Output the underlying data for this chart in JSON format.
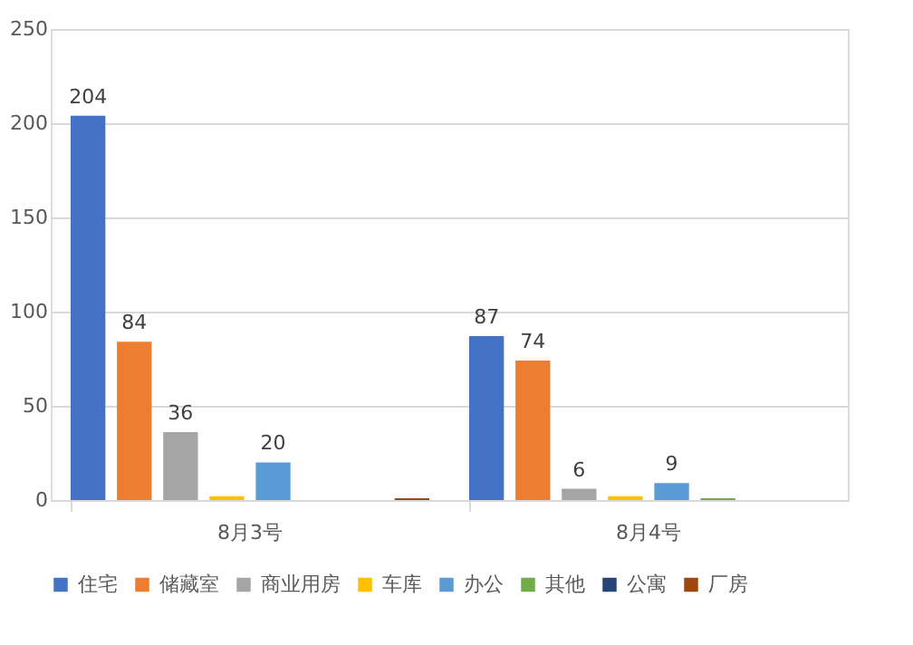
{
  "chart_data": {
    "type": "bar",
    "categories": [
      "8月3号",
      "8月4号"
    ],
    "series": [
      {
        "name": "住宅",
        "color": "#4472c4",
        "values": [
          204,
          87
        ],
        "value_labels": [
          "204",
          "87"
        ]
      },
      {
        "name": "储藏室",
        "color": "#ed7d31",
        "values": [
          84,
          74
        ],
        "value_labels": [
          "84",
          "74"
        ]
      },
      {
        "name": "商业用房",
        "color": "#a5a5a5",
        "values": [
          36,
          6
        ],
        "value_labels": [
          "36",
          "6"
        ]
      },
      {
        "name": "车库",
        "color": "#ffc000",
        "values": [
          2,
          2
        ],
        "value_labels": [
          null,
          null
        ]
      },
      {
        "name": "办公",
        "color": "#5b9bd5",
        "values": [
          20,
          9
        ],
        "value_labels": [
          "20",
          "9"
        ]
      },
      {
        "name": "其他",
        "color": "#70ad47",
        "values": [
          0,
          1
        ],
        "value_labels": [
          null,
          null
        ]
      },
      {
        "name": "公寓",
        "color": "#264478",
        "values": [
          0,
          0
        ],
        "value_labels": [
          null,
          null
        ]
      },
      {
        "name": "厂房",
        "color": "#9e480e",
        "values": [
          1,
          0
        ],
        "value_labels": [
          null,
          null
        ]
      }
    ],
    "ylim": [
      0,
      250
    ],
    "yticks": [
      0,
      50,
      100,
      150,
      200,
      250
    ],
    "grid": "y",
    "legend": "bottom"
  }
}
